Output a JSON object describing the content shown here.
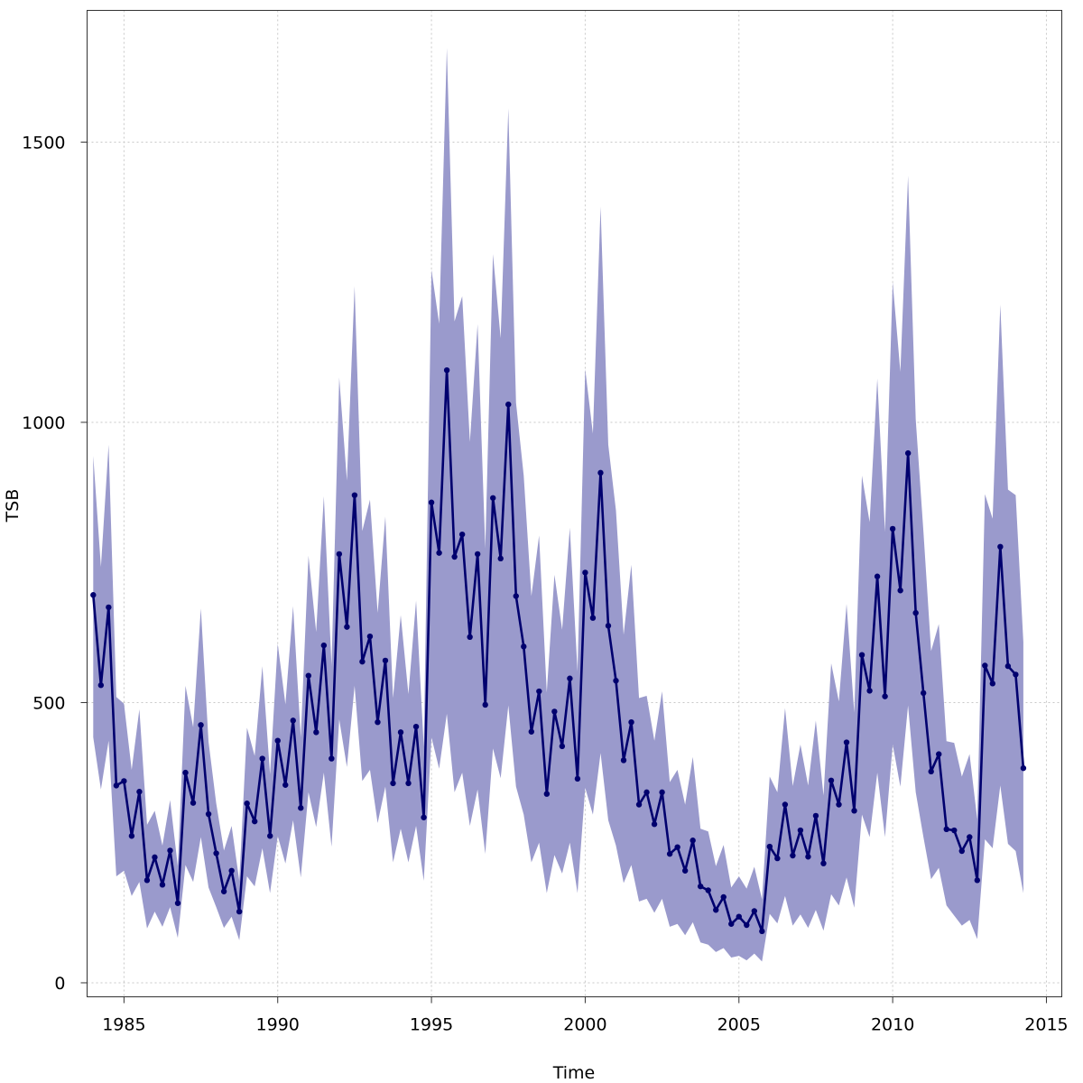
{
  "chart_data": {
    "type": "line",
    "title": "",
    "xlabel": "Time",
    "ylabel": "TSB",
    "xlim": [
      1983.8,
      2015.5
    ],
    "ylim": [
      -25,
      1735
    ],
    "x_ticks": [
      1985,
      1990,
      1995,
      2000,
      2005,
      2010,
      2015
    ],
    "y_ticks": [
      0,
      500,
      1000,
      1500
    ],
    "grid": true,
    "colors": {
      "line": "#00006e",
      "band": "#9a9acc",
      "grid": "#c8c8c8",
      "axis": "#333333"
    },
    "series": [
      {
        "x": [
          1984.0,
          1984.25,
          1984.5,
          1984.75,
          1985.0,
          1985.25,
          1985.5,
          1985.75,
          1986.0,
          1986.25,
          1986.5,
          1986.75,
          1987.0,
          1987.25,
          1987.5,
          1987.75,
          1988.0,
          1988.25,
          1988.5,
          1988.75,
          1989.0,
          1989.25,
          1989.5,
          1989.75,
          1990.0,
          1990.25,
          1990.5,
          1990.75,
          1991.0,
          1991.25,
          1991.5,
          1991.75,
          1992.0,
          1992.25,
          1992.5,
          1992.75,
          1993.0,
          1993.25,
          1993.5,
          1993.75,
          1994.0,
          1994.25,
          1994.5,
          1994.75,
          1995.0,
          1995.25,
          1995.5,
          1995.75,
          1996.0,
          1996.25,
          1996.5,
          1996.75,
          1997.0,
          1997.25,
          1997.5,
          1997.75,
          1998.0,
          1998.25,
          1998.5,
          1998.75,
          1999.0,
          1999.25,
          1999.5,
          1999.75,
          2000.0,
          2000.25,
          2000.5,
          2000.75,
          2001.0,
          2001.25,
          2001.5,
          2001.75,
          2002.0,
          2002.25,
          2002.5,
          2002.75,
          2003.0,
          2003.25,
          2003.5,
          2003.75,
          2004.0,
          2004.25,
          2004.5,
          2004.75,
          2005.0,
          2005.25,
          2005.5,
          2005.75,
          2006.0,
          2006.25,
          2006.5,
          2006.75,
          2007.0,
          2007.25,
          2007.5,
          2007.75,
          2008.0,
          2008.25,
          2008.5,
          2008.75,
          2009.0,
          2009.25,
          2009.5,
          2009.75,
          2010.0,
          2010.25,
          2010.5,
          2010.75,
          2011.0,
          2011.25,
          2011.5,
          2011.75,
          2012.0,
          2012.25,
          2012.5,
          2012.75,
          2013.0,
          2013.25,
          2013.5,
          2013.75,
          2014.0,
          2014.25
        ],
        "y": [
          692,
          531,
          670,
          352,
          360,
          262,
          341,
          183,
          224,
          175,
          236,
          142,
          375,
          321,
          460,
          301,
          231,
          163,
          200,
          127,
          320,
          288,
          400,
          262,
          432,
          353,
          468,
          312,
          548,
          447,
          602,
          400,
          765,
          635,
          870,
          573,
          618,
          465,
          575,
          356,
          447,
          356,
          457,
          295,
          857,
          767,
          1093,
          760,
          800,
          617,
          765,
          496,
          865,
          757,
          1032,
          690,
          600,
          448,
          520,
          337,
          484,
          422,
          543,
          364,
          732,
          651,
          910,
          637,
          539,
          397,
          465,
          318,
          340,
          283,
          340,
          230,
          242,
          200,
          254,
          172,
          165,
          130,
          153,
          105,
          118,
          103,
          128,
          92,
          243,
          222,
          318,
          227,
          272,
          225,
          298,
          213,
          361,
          318,
          429,
          307,
          585,
          521,
          725,
          511,
          810,
          700,
          945,
          660,
          517,
          377,
          408,
          274,
          272,
          235,
          260,
          183,
          566,
          534,
          778,
          565,
          550,
          383
        ],
        "lower": [
          438,
          345,
          432,
          190,
          200,
          155,
          180,
          97,
          127,
          100,
          135,
          80,
          210,
          180,
          260,
          170,
          135,
          98,
          118,
          76,
          190,
          172,
          240,
          160,
          262,
          213,
          290,
          188,
          340,
          278,
          375,
          243,
          470,
          385,
          530,
          360,
          380,
          285,
          350,
          215,
          275,
          215,
          280,
          182,
          438,
          382,
          480,
          340,
          375,
          280,
          345,
          230,
          418,
          365,
          495,
          350,
          300,
          215,
          250,
          160,
          228,
          195,
          250,
          160,
          348,
          300,
          410,
          290,
          245,
          178,
          210,
          145,
          150,
          125,
          150,
          100,
          105,
          85,
          108,
          72,
          68,
          55,
          62,
          45,
          48,
          40,
          52,
          38,
          123,
          106,
          155,
          102,
          122,
          98,
          130,
          93,
          158,
          138,
          188,
          134,
          300,
          260,
          375,
          260,
          425,
          350,
          495,
          340,
          260,
          185,
          205,
          138,
          120,
          102,
          112,
          78,
          256,
          240,
          352,
          248,
          235,
          160
        ],
        "upper": [
          940,
          742,
          960,
          510,
          498,
          380,
          488,
          282,
          307,
          245,
          326,
          208,
          530,
          456,
          668,
          430,
          320,
          236,
          280,
          182,
          455,
          405,
          565,
          372,
          605,
          497,
          672,
          438,
          762,
          626,
          868,
          566,
          1080,
          896,
          1243,
          806,
          862,
          660,
          832,
          508,
          656,
          515,
          682,
          421,
          1272,
          1176,
          1668,
          1180,
          1225,
          965,
          1175,
          775,
          1300,
          1150,
          1560,
          1035,
          905,
          690,
          798,
          518,
          728,
          630,
          812,
          555,
          1095,
          980,
          1385,
          960,
          843,
          621,
          746,
          508,
          512,
          432,
          520,
          358,
          380,
          318,
          403,
          275,
          270,
          208,
          246,
          170,
          190,
          168,
          207,
          149,
          368,
          340,
          490,
          351,
          425,
          352,
          468,
          334,
          570,
          502,
          676,
          482,
          905,
          822,
          1078,
          805,
          1250,
          1090,
          1440,
          1005,
          805,
          592,
          640,
          431,
          428,
          368,
          408,
          292,
          872,
          828,
          1210,
          880,
          870,
          608
        ]
      }
    ]
  }
}
